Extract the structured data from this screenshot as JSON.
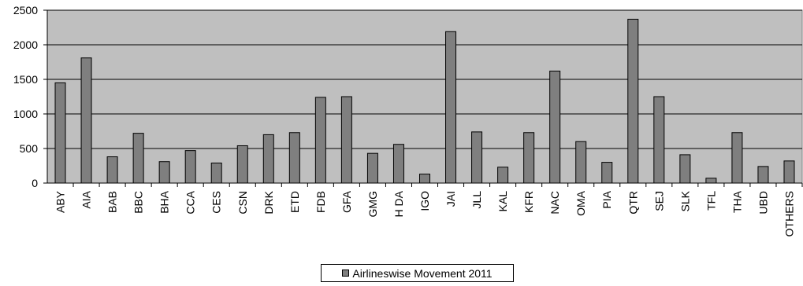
{
  "chart_data": {
    "type": "bar",
    "categories": [
      "ABY",
      "AIA",
      "BAB",
      "BBC",
      "BHA",
      "CCA",
      "CES",
      "CSN",
      "DRK",
      "ETD",
      "FDB",
      "GFA",
      "GMG",
      "H DA",
      "IGO",
      "JAI",
      "JLL",
      "KAL",
      "KFR",
      "NAC",
      "OMA",
      "PIA",
      "QTR",
      "SEJ",
      "SLK",
      "TFL",
      "THA",
      "UBD",
      "OTHERS"
    ],
    "series": [
      {
        "name": "Airlineswise Movement 2011",
        "values": [
          1450,
          1810,
          380,
          720,
          310,
          470,
          290,
          540,
          700,
          730,
          1240,
          1250,
          430,
          560,
          130,
          2190,
          740,
          230,
          730,
          1620,
          600,
          300,
          2370,
          1250,
          410,
          70,
          730,
          240,
          320
        ]
      }
    ],
    "ylim": [
      0,
      2500
    ],
    "yticks": [
      0,
      500,
      1000,
      1500,
      2000,
      2500
    ],
    "grid": true,
    "legend_position": "bottom",
    "colors": {
      "bar": "#7f7f7f",
      "plot_bg": "#bfbfbf",
      "gridline": "#000000"
    }
  },
  "legend": {
    "label": "Airlineswise Movement 2011"
  }
}
